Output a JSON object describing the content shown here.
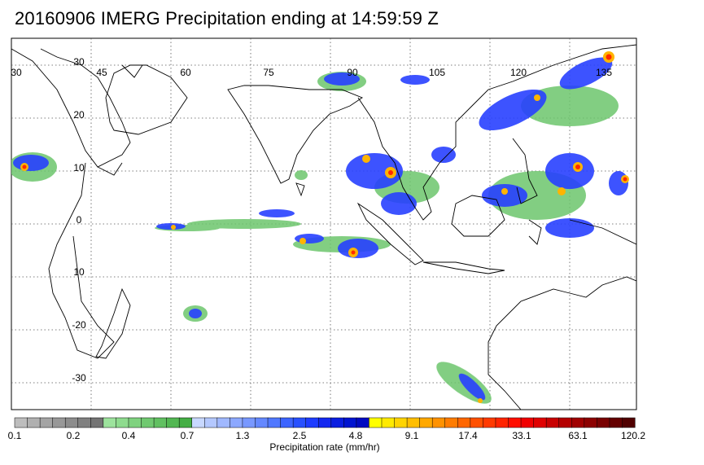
{
  "title": "20160906 IMERG Precipitation ending at 14:59:59 Z",
  "map": {
    "lon_labels": [
      "30",
      "45",
      "60",
      "75",
      "90",
      "105",
      "120",
      "135"
    ],
    "lat_labels": [
      "30",
      "20",
      "10",
      "0",
      "10",
      "-20",
      "-30"
    ],
    "coastline_color": "#000000",
    "grid_style": "dotted"
  },
  "colorbar": {
    "labels": [
      "0.1",
      "0.2",
      "0.4",
      "0.7",
      "1.3",
      "2.5",
      "4.8",
      "9.1",
      "17.4",
      "33.1",
      "63.1",
      "120.2"
    ],
    "title": "Precipitation rate (mm/hr)",
    "colors": [
      "#bdbdbd",
      "#b0b0b0",
      "#a4a4a4",
      "#989898",
      "#8c8c8c",
      "#808080",
      "#747474",
      "#9de39d",
      "#8edb8e",
      "#7fd27f",
      "#70c970",
      "#61c061",
      "#52b752",
      "#44ae44",
      "#c8d8ff",
      "#b4c8ff",
      "#a0b8ff",
      "#8ca8ff",
      "#7898ff",
      "#6488ff",
      "#5078ff",
      "#3c64ff",
      "#2850ff",
      "#1e3cff",
      "#1428f0",
      "#0a1ee0",
      "#0014d0",
      "#000ac0",
      "#ffff00",
      "#ffea00",
      "#ffd400",
      "#ffbe00",
      "#ffa800",
      "#ff9200",
      "#ff7c00",
      "#ff6600",
      "#ff5000",
      "#ff3a00",
      "#ff2400",
      "#ff0e00",
      "#f00000",
      "#e00000",
      "#c80000",
      "#b40000",
      "#a00000",
      "#8c0000",
      "#780000",
      "#640000",
      "#500000"
    ]
  }
}
